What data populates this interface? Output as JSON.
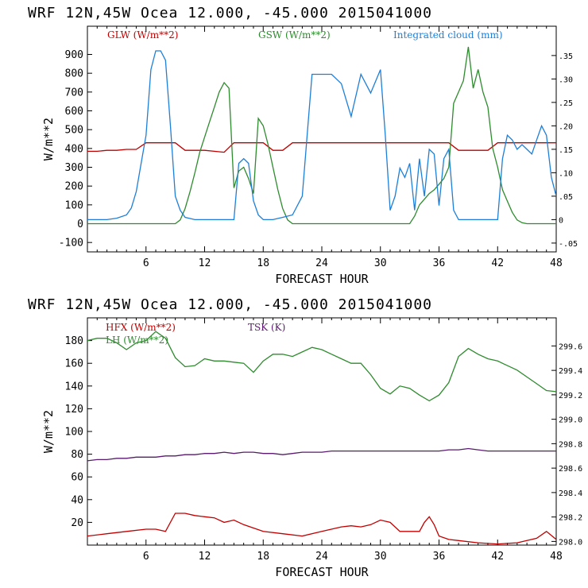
{
  "chart_data": [
    {
      "type": "line",
      "title": "WRF   12N,45W Ocea  12.000, -45.000  2015041000",
      "xlabel": "FORECAST HOUR",
      "ylabel": "W/m**2",
      "xlim": [
        0,
        48
      ],
      "ylim": [
        -150,
        1050
      ],
      "y2lim": [
        -0.0688,
        0.4125
      ],
      "xticks": [
        "6",
        "12",
        "18",
        "24",
        "30",
        "36",
        "42",
        "48"
      ],
      "yticks": [
        "-100",
        "0",
        "100",
        "200",
        "300",
        "400",
        "500",
        "600",
        "700",
        "800",
        "900"
      ],
      "y2ticks": [
        "-.05",
        "0",
        ".05",
        ".10",
        ".15",
        ".20",
        ".25",
        ".30",
        ".35"
      ],
      "series": [
        {
          "name": "GLW (W/m**2)",
          "color": "#c00000",
          "axis": "left",
          "x": [
            0,
            1,
            2,
            3,
            4,
            5,
            6,
            7,
            8,
            9,
            10,
            11,
            12,
            13,
            14,
            15,
            16,
            17,
            18,
            19,
            20,
            21,
            22,
            23,
            24,
            25,
            26,
            27,
            28,
            29,
            30,
            31,
            32,
            33,
            34,
            35,
            36,
            37,
            38,
            39,
            40,
            41,
            42,
            43,
            44,
            45,
            46,
            47,
            48
          ],
          "y": [
            385,
            385,
            390,
            390,
            395,
            395,
            430,
            430,
            430,
            430,
            390,
            390,
            390,
            385,
            380,
            430,
            430,
            430,
            430,
            390,
            390,
            430,
            430,
            430,
            430,
            430,
            430,
            430,
            430,
            430,
            430,
            430,
            430,
            430,
            430,
            430,
            430,
            430,
            390,
            390,
            390,
            390,
            430,
            430,
            430,
            430,
            430,
            430,
            430
          ]
        },
        {
          "name": "GSW (W/m**2)",
          "color": "#2e8b2e",
          "axis": "left",
          "x": [
            0,
            9,
            9.5,
            10,
            10.5,
            11,
            11.5,
            12,
            12.5,
            13,
            13.5,
            14,
            14.5,
            15,
            15.5,
            16,
            16.5,
            17,
            17.5,
            18,
            18.5,
            19,
            19.5,
            20,
            20.5,
            21,
            33,
            33.5,
            34,
            34.5,
            35,
            35.5,
            36,
            36.5,
            37,
            37.5,
            38,
            38.5,
            39,
            39.5,
            40,
            40.5,
            41,
            41.5,
            42,
            42.5,
            43,
            43.5,
            44,
            44.5,
            45,
            48
          ],
          "y": [
            0,
            0,
            20,
            80,
            170,
            270,
            380,
            460,
            540,
            620,
            700,
            750,
            720,
            190,
            280,
            300,
            240,
            160,
            560,
            520,
            420,
            300,
            180,
            80,
            20,
            0,
            0,
            40,
            100,
            130,
            160,
            180,
            210,
            240,
            300,
            640,
            700,
            760,
            940,
            720,
            820,
            700,
            620,
            400,
            300,
            180,
            120,
            60,
            20,
            5,
            0,
            0
          ]
        },
        {
          "name": "Integrated cloud (mm)",
          "color": "#1e7fd8",
          "axis": "right",
          "x": [
            0,
            2,
            3,
            4,
            4.5,
            5,
            5.5,
            6,
            6.5,
            7,
            7.5,
            8,
            8.5,
            9,
            9.5,
            10,
            11,
            14,
            15,
            15.5,
            16,
            16.5,
            17,
            17.5,
            18,
            19,
            20,
            21,
            22,
            23,
            24,
            25,
            26,
            27,
            28,
            29,
            30,
            30.5,
            31,
            31.5,
            32,
            32.5,
            33,
            33.5,
            34,
            34.5,
            35,
            35.5,
            36,
            36.5,
            37,
            37.5,
            38,
            41,
            42,
            42.5,
            43,
            43.5,
            44,
            44.5,
            45,
            45.5,
            46,
            46.5,
            47,
            47.5,
            48
          ],
          "y": [
            0,
            0,
            0.003,
            0.01,
            0.025,
            0.06,
            0.12,
            0.18,
            0.32,
            0.36,
            0.36,
            0.34,
            0.2,
            0.05,
            0.02,
            0.005,
            0,
            0,
            0,
            0.12,
            0.13,
            0.12,
            0.04,
            0.01,
            0,
            0,
            0.005,
            0.01,
            0.05,
            0.31,
            0.31,
            0.31,
            0.29,
            0.22,
            0.31,
            0.27,
            0.32,
            0.18,
            0.02,
            0.05,
            0.11,
            0.09,
            0.12,
            0.02,
            0.13,
            0.05,
            0.15,
            0.14,
            0.03,
            0.13,
            0.15,
            0.02,
            0,
            0,
            0,
            0.13,
            0.18,
            0.17,
            0.15,
            0.16,
            0.15,
            0.14,
            0.17,
            0.2,
            0.18,
            0.09,
            0.05
          ]
        }
      ]
    },
    {
      "type": "line",
      "title": "WRF   12N,45W Ocea  12.000, -45.000  2015041000",
      "xlabel": "FORECAST HOUR",
      "ylabel": "W/m**2",
      "xlim": [
        0,
        48
      ],
      "ylim": [
        0,
        200
      ],
      "y2lim": [
        297.97,
        299.83
      ],
      "xticks": [
        "6",
        "12",
        "18",
        "24",
        "30",
        "36",
        "42",
        "48"
      ],
      "yticks": [
        "20",
        "40",
        "60",
        "80",
        "100",
        "120",
        "140",
        "160",
        "180"
      ],
      "y2ticks": [
        "298.0",
        "298.2",
        "298.4",
        "298.6",
        "298.8",
        "299.0",
        "299.2",
        "299.4",
        "299.6"
      ],
      "series": [
        {
          "name": "HFX (W/m**2)",
          "color": "#c00000",
          "axis": "left",
          "x": [
            0,
            2,
            4,
            6,
            7,
            8,
            9,
            10,
            11,
            12,
            13,
            14,
            15,
            16,
            18,
            20,
            22,
            24,
            26,
            27,
            28,
            29,
            30,
            31,
            32,
            34,
            34.5,
            35,
            35.5,
            36,
            37,
            38,
            40,
            42,
            44,
            46,
            47,
            48
          ],
          "y": [
            8,
            10,
            12,
            14,
            14,
            12,
            28,
            28,
            26,
            25,
            24,
            20,
            22,
            18,
            12,
            10,
            8,
            12,
            16,
            17,
            16,
            18,
            22,
            20,
            12,
            12,
            20,
            25,
            18,
            8,
            5,
            4,
            2,
            1,
            2,
            6,
            12,
            5
          ]
        },
        {
          "name": "LH  (W/m**2)",
          "color": "#2e8b2e",
          "axis": "left",
          "x": [
            0,
            1,
            2,
            3,
            4,
            5,
            6,
            7,
            8,
            9,
            10,
            11,
            12,
            13,
            14,
            15,
            16,
            17,
            18,
            19,
            20,
            21,
            22,
            23,
            24,
            25,
            26,
            27,
            28,
            29,
            30,
            31,
            32,
            33,
            34,
            35,
            36,
            37,
            38,
            39,
            40,
            41,
            42,
            43,
            44,
            45,
            46,
            47,
            48
          ],
          "y": [
            180,
            182,
            182,
            178,
            172,
            178,
            180,
            188,
            182,
            165,
            157,
            158,
            164,
            162,
            162,
            161,
            160,
            152,
            162,
            168,
            168,
            166,
            170,
            174,
            172,
            168,
            164,
            160,
            160,
            150,
            138,
            133,
            140,
            138,
            132,
            127,
            132,
            143,
            166,
            173,
            168,
            164,
            162,
            158,
            154,
            148,
            142,
            136,
            135
          ]
        },
        {
          "name": "TSK (K)",
          "color": "#5a1a6e",
          "axis": "right",
          "x": [
            0,
            1,
            2,
            3,
            4,
            5,
            6,
            7,
            8,
            9,
            10,
            11,
            12,
            13,
            14,
            15,
            16,
            17,
            18,
            19,
            20,
            21,
            22,
            23,
            24,
            25,
            26,
            27,
            28,
            29,
            30,
            31,
            32,
            33,
            34,
            35,
            36,
            37,
            38,
            39,
            40,
            41,
            42,
            43,
            44,
            45,
            46,
            47,
            48
          ],
          "y": [
            298.66,
            298.67,
            298.67,
            298.68,
            298.68,
            298.69,
            298.69,
            298.69,
            298.7,
            298.7,
            298.71,
            298.71,
            298.72,
            298.72,
            298.73,
            298.72,
            298.73,
            298.73,
            298.72,
            298.72,
            298.71,
            298.72,
            298.73,
            298.73,
            298.73,
            298.74,
            298.74,
            298.74,
            298.74,
            298.74,
            298.74,
            298.74,
            298.74,
            298.74,
            298.74,
            298.74,
            298.74,
            298.75,
            298.75,
            298.76,
            298.75,
            298.74,
            298.74,
            298.74,
            298.74,
            298.74,
            298.74,
            298.74,
            298.74
          ]
        }
      ]
    }
  ]
}
